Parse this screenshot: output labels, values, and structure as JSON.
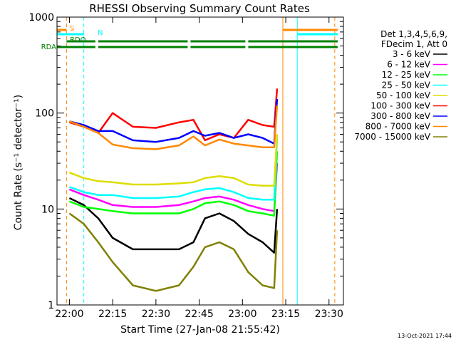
{
  "footer_date": "13-Oct-2021 17:44",
  "chart_data": {
    "type": "line",
    "title": "RHESSI Observing Summary Count Rates",
    "xlabel": "Start Time (27-Jan-08 21:55:42)",
    "ylabel": "Count Rate (s⁻¹ detector⁻¹)",
    "yscale": "log",
    "xlim": [
      "21:55:42",
      "23:35:00"
    ],
    "ylim": [
      1,
      1000
    ],
    "xticks": [
      "22:00",
      "22:15",
      "22:30",
      "22:45",
      "23:00",
      "23:15",
      "23:30"
    ],
    "yticks": [
      "1",
      "10",
      "100",
      "1000"
    ],
    "grid": false,
    "legend_position": "top-right",
    "legend_header": [
      "Det 1,3,4,5,6,9,",
      "FDecim 1, Att 0"
    ],
    "series": [
      {
        "name": "3 - 6 keV",
        "color": "#000000",
        "x": [
          "21:55:42",
          "22:00",
          "22:05",
          "22:10",
          "22:15",
          "22:22",
          "22:30",
          "22:38",
          "22:43",
          "22:47",
          "22:52",
          "22:57",
          "23:02",
          "23:07",
          "23:11",
          "23:12",
          "23:13"
        ],
        "values": [
          null,
          13,
          11,
          8,
          5,
          3.8,
          3.8,
          3.8,
          4.5,
          8,
          9,
          7.5,
          5.5,
          4.5,
          3.5,
          10,
          null
        ]
      },
      {
        "name": "6 - 12 keV",
        "color": "#ff00ff",
        "x": [
          "21:55:42",
          "22:00",
          "22:05",
          "22:10",
          "22:15",
          "22:22",
          "22:30",
          "22:38",
          "22:43",
          "22:47",
          "22:52",
          "22:57",
          "23:02",
          "23:07",
          "23:11",
          "23:12",
          "23:13"
        ],
        "values": [
          null,
          16,
          14,
          12.5,
          11,
          10.5,
          10.5,
          11,
          12,
          13,
          13.5,
          12.5,
          11,
          10,
          9.5,
          30,
          null
        ]
      },
      {
        "name": "12 - 25 keV",
        "color": "#00ff00",
        "x": [
          "21:55:42",
          "22:00",
          "22:05",
          "22:10",
          "22:15",
          "22:22",
          "22:30",
          "22:38",
          "22:43",
          "22:47",
          "22:52",
          "22:57",
          "23:02",
          "23:07",
          "23:11",
          "23:12",
          "23:13"
        ],
        "values": [
          null,
          12,
          10.5,
          10,
          9.5,
          9,
          9,
          9,
          10,
          11.5,
          12,
          11,
          9.5,
          9,
          8.5,
          40,
          null
        ]
      },
      {
        "name": "25 - 50 keV",
        "color": "#00ffff",
        "x": [
          "21:55:42",
          "22:00",
          "22:05",
          "22:10",
          "22:15",
          "22:22",
          "22:30",
          "22:38",
          "22:43",
          "22:47",
          "22:52",
          "22:57",
          "23:02",
          "23:07",
          "23:11",
          "23:12",
          "23:13"
        ],
        "values": [
          null,
          17,
          15,
          14,
          14,
          13,
          13,
          13.5,
          15,
          16,
          16.5,
          15,
          13,
          12.5,
          12.5,
          55,
          null
        ]
      },
      {
        "name": "50 - 100 keV",
        "color": "#dddd00",
        "x": [
          "21:55:42",
          "22:00",
          "22:05",
          "22:10",
          "22:15",
          "22:22",
          "22:30",
          "22:38",
          "22:43",
          "22:47",
          "22:52",
          "22:57",
          "23:02",
          "23:07",
          "23:11",
          "23:12",
          "23:13"
        ],
        "values": [
          null,
          24,
          21,
          19.5,
          19,
          18,
          18,
          18.5,
          19,
          21,
          22,
          21,
          18,
          17.5,
          17.5,
          60,
          null
        ]
      },
      {
        "name": "100 - 300 keV",
        "color": "#ff0000",
        "x": [
          "21:55:42",
          "22:00",
          "22:05",
          "22:10",
          "22:15",
          "22:22",
          "22:30",
          "22:38",
          "22:43",
          "22:47",
          "22:52",
          "22:57",
          "23:02",
          "23:07",
          "23:11",
          "23:12",
          "23:13"
        ],
        "values": [
          null,
          80,
          72,
          62,
          100,
          72,
          70,
          80,
          85,
          52,
          60,
          55,
          85,
          75,
          72,
          180,
          null
        ]
      },
      {
        "name": "300 - 800 keV",
        "color": "#0000ff",
        "x": [
          "21:55:42",
          "22:00",
          "22:05",
          "22:10",
          "22:15",
          "22:22",
          "22:30",
          "22:38",
          "22:43",
          "22:47",
          "22:52",
          "22:57",
          "23:02",
          "23:07",
          "23:11",
          "23:12",
          "23:13"
        ],
        "values": [
          null,
          82,
          75,
          65,
          65,
          52,
          50,
          55,
          65,
          58,
          62,
          55,
          60,
          55,
          48,
          140,
          null
        ]
      },
      {
        "name": "800 - 7000 keV",
        "color": "#ff8800",
        "x": [
          "21:55:42",
          "22:00",
          "22:05",
          "22:10",
          "22:15",
          "22:22",
          "22:30",
          "22:38",
          "22:43",
          "22:47",
          "22:52",
          "22:57",
          "23:02",
          "23:07",
          "23:11",
          "23:12",
          "23:13"
        ],
        "values": [
          null,
          82,
          72,
          62,
          47,
          43,
          42,
          46,
          57,
          46,
          53,
          48,
          46,
          44,
          44,
          120,
          null
        ]
      },
      {
        "name": "7000 - 15000 keV",
        "color": "#808000",
        "x": [
          "21:55:42",
          "22:00",
          "22:05",
          "22:10",
          "22:15",
          "22:22",
          "22:30",
          "22:38",
          "22:43",
          "22:47",
          "22:52",
          "22:57",
          "23:02",
          "23:07",
          "23:11",
          "23:12",
          "23:13"
        ],
        "values": [
          null,
          9,
          7,
          4.5,
          2.8,
          1.6,
          1.4,
          1.6,
          2.5,
          4,
          4.5,
          3.8,
          2.2,
          1.6,
          1.5,
          6,
          null
        ]
      }
    ],
    "flag_lines": [
      {
        "name": "S",
        "color": "#ff8800",
        "segments": [
          [
            "21:55:42",
            "21:59:00"
          ],
          [
            "23:14:00",
            "23:33:00"
          ]
        ]
      },
      {
        "name": "N",
        "color": "#00ffff",
        "segments": [
          [
            "21:55:42",
            "22:05:00"
          ],
          [
            "23:19:00",
            "23:33:00"
          ]
        ]
      },
      {
        "name": "RDO",
        "color": "#008000",
        "segments": [
          [
            "21:59:00",
            "22:09:00"
          ],
          [
            "22:10:00",
            "22:41:00"
          ],
          [
            "22:42:00",
            "23:01:00"
          ],
          [
            "23:02:00",
            "23:33:00"
          ]
        ]
      },
      {
        "name": "RDA",
        "color": "#008000",
        "segments": [
          [
            "21:55:42",
            "22:09:00"
          ],
          [
            "22:10:00",
            "22:41:00"
          ],
          [
            "22:42:00",
            "23:01:00"
          ],
          [
            "23:02:00",
            "23:33:00"
          ]
        ]
      }
    ],
    "vertical_markers": [
      {
        "time": "21:55:42",
        "color": "#00ffff",
        "style": "solid"
      },
      {
        "time": "21:59:00",
        "color": "#ff8800",
        "style": "dashed"
      },
      {
        "time": "22:05:00",
        "color": "#00ffff",
        "style": "dashed"
      },
      {
        "time": "23:14:00",
        "color": "#ff8800",
        "style": "solid"
      },
      {
        "time": "23:19:00",
        "color": "#00ffff",
        "style": "solid"
      },
      {
        "time": "23:32:00",
        "color": "#ff8800",
        "style": "dashed"
      }
    ]
  }
}
